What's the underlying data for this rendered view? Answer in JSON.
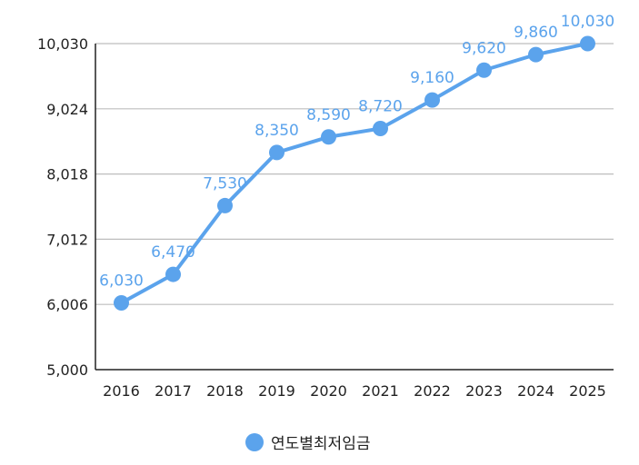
{
  "chart_data": {
    "type": "line",
    "title": "",
    "xlabel": "",
    "ylabel": "",
    "categories": [
      "2016",
      "2017",
      "2018",
      "2019",
      "2020",
      "2021",
      "2022",
      "2023",
      "2024",
      "2025"
    ],
    "series": [
      {
        "name": "연도별최저임금",
        "values": [
          6030,
          6470,
          7530,
          8350,
          8590,
          8720,
          9160,
          9620,
          9860,
          10030
        ],
        "value_labels": [
          "6,030",
          "6,470",
          "7,530",
          "8,350",
          "8,590",
          "8,720",
          "9,160",
          "9,620",
          "9,860",
          "10,030"
        ],
        "color": "#5BA3EC"
      }
    ],
    "yticks": [
      5000,
      6006,
      7012,
      8018,
      9024,
      10030
    ],
    "ytick_labels": [
      "5,000",
      "6,006",
      "7,012",
      "8,018",
      "9,024",
      "10,030"
    ],
    "ylim": [
      5000,
      10030
    ],
    "grid": true,
    "legend_position": "bottom"
  },
  "legend": {
    "label": "연도별최저임금",
    "icon": "circle-marker-icon"
  },
  "colors": {
    "series": "#5BA3EC",
    "grid": "#bdbdbd",
    "axis": "#222222"
  }
}
